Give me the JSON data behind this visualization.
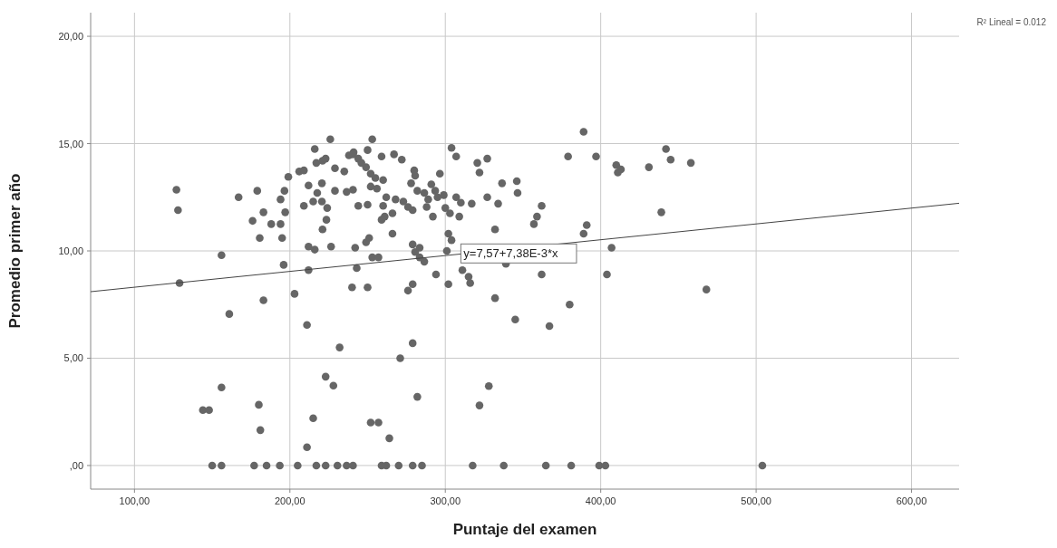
{
  "chart_data": {
    "type": "scatter",
    "xlabel": "Puntaje del examen",
    "ylabel": "Promedio primer año",
    "xlim": [
      71.8,
      630.6
    ],
    "ylim": [
      -1.1,
      21.1
    ],
    "xticks": [
      {
        "value": 100,
        "label": "100,00"
      },
      {
        "value": 200,
        "label": "200,00"
      },
      {
        "value": 300,
        "label": "300,00"
      },
      {
        "value": 400,
        "label": "400,00"
      },
      {
        "value": 500,
        "label": "500,00"
      },
      {
        "value": 600,
        "label": "600,00"
      }
    ],
    "yticks": [
      {
        "value": 0,
        "label": ",00"
      },
      {
        "value": 5,
        "label": "5,00"
      },
      {
        "value": 10,
        "label": "10,00"
      },
      {
        "value": 15,
        "label": "15,00"
      },
      {
        "value": 20,
        "label": "20,00"
      }
    ],
    "grid": true,
    "marker": "circle",
    "series": [
      {
        "color": "#666666",
        "x": [
          150,
          156,
          177,
          185,
          193.5,
          205,
          217,
          223,
          230.6,
          236.5,
          240.6,
          259,
          262,
          270,
          279,
          285,
          317.6,
          337.6,
          364.7,
          381,
          399,
          403,
          504,
          183,
          203,
          161,
          211,
          232,
          279,
          271,
          156,
          223,
          228,
          282,
          144,
          148,
          180,
          181,
          215,
          252,
          257,
          264,
          211,
          332,
          345,
          367,
          380,
          468,
          328,
          322,
          442,
          445,
          458,
          431,
          410,
          411,
          413,
          439,
          407,
          404,
          226,
          127,
          128,
          129,
          156,
          167,
          179,
          183,
          176,
          188,
          194,
          180.6,
          195,
          194,
          196.5,
          197,
          199,
          196,
          212,
          216,
          226.5,
          242,
          212,
          243,
          240,
          216,
          217,
          221,
          223,
          206,
          209,
          229,
          235,
          238,
          241,
          244,
          212,
          220.6,
          217.6,
          229,
          236.5,
          240.6,
          209,
          215,
          220.6,
          224,
          223.5,
          221,
          244,
          253,
          250,
          240.6,
          259,
          267,
          272,
          246,
          249,
          252,
          255,
          260,
          252,
          256,
          250,
          260,
          262,
          268,
          273,
          266,
          261,
          259,
          276,
          279,
          278,
          280.6,
          280,
          282,
          286.5,
          291,
          293.5,
          289,
          295,
          299,
          296.5,
          288,
          292,
          300,
          303,
          307,
          310,
          309,
          304,
          307,
          320.6,
          322,
          327,
          317,
          327,
          334,
          336.5,
          346,
          346.5,
          332,
          362,
          359,
          357,
          379,
          397,
          389,
          391,
          389,
          362,
          339,
          302,
          304,
          311,
          315,
          316,
          294,
          302,
          301,
          279,
          283.5,
          280.6,
          283.5,
          286.5,
          251,
          249,
          253,
          257,
          266,
          250,
          276,
          279
        ],
        "values": [
          0,
          0,
          0,
          0,
          0,
          0,
          0,
          0,
          0,
          0,
          0,
          0,
          0,
          0,
          0,
          0,
          0,
          0,
          0,
          0,
          0,
          0,
          0,
          7.7,
          8.0,
          7.06,
          6.55,
          5.5,
          5.7,
          5.0,
          3.64,
          4.14,
          3.72,
          3.2,
          2.58,
          2.58,
          2.83,
          1.65,
          2.2,
          2.0,
          2.0,
          1.27,
          0.85,
          7.8,
          6.8,
          6.5,
          7.5,
          8.2,
          3.7,
          2.8,
          14.75,
          14.25,
          14.1,
          13.9,
          14.0,
          13.65,
          13.8,
          11.8,
          10.15,
          8.9,
          15.2,
          12.85,
          11.9,
          8.5,
          9.8,
          12.5,
          12.8,
          11.8,
          11.4,
          11.25,
          11.25,
          10.6,
          10.6,
          12.4,
          12.8,
          11.8,
          13.45,
          9.35,
          10.2,
          10.06,
          10.2,
          10.15,
          9.1,
          9.2,
          8.3,
          14.75,
          14.1,
          14.2,
          14.3,
          13.7,
          13.75,
          13.85,
          13.7,
          14.45,
          14.6,
          14.3,
          13.05,
          13.15,
          12.7,
          12.8,
          12.75,
          12.85,
          12.1,
          12.3,
          12.3,
          12.0,
          11.45,
          11.0,
          12.1,
          15.2,
          14.7,
          14.5,
          14.4,
          14.5,
          14.25,
          14.1,
          13.9,
          13.6,
          13.4,
          13.3,
          13.0,
          12.9,
          12.15,
          12.1,
          12.5,
          12.4,
          12.3,
          11.75,
          11.6,
          11.45,
          12.05,
          11.9,
          13.15,
          13.5,
          13.75,
          12.8,
          12.7,
          13.1,
          12.8,
          12.4,
          12.5,
          12.6,
          13.6,
          12.05,
          11.6,
          12.0,
          11.75,
          12.5,
          12.25,
          11.6,
          14.8,
          14.4,
          14.1,
          13.65,
          14.3,
          12.2,
          12.5,
          12.2,
          13.15,
          13.25,
          12.7,
          11.0,
          12.1,
          11.6,
          11.25,
          14.4,
          14.4,
          15.55,
          11.2,
          10.8,
          8.9,
          9.4,
          10.8,
          10.5,
          9.1,
          8.8,
          8.5,
          8.9,
          8.45,
          10.0,
          10.3,
          10.15,
          9.95,
          9.7,
          9.5,
          10.6,
          10.4,
          9.7,
          9.7,
          10.8,
          8.3,
          8.15,
          8.45
        ]
      },
      {
        "type": "line",
        "color": "#444444",
        "marker": "none",
        "x": [
          71.8,
          630.6
        ],
        "values": [
          8.1,
          12.22
        ]
      }
    ],
    "annotations": [
      {
        "text": "y=7,57+7,38E-3*x",
        "x": 310,
        "y": 9.86
      },
      "R² Lineal = 0.012"
    ]
  }
}
